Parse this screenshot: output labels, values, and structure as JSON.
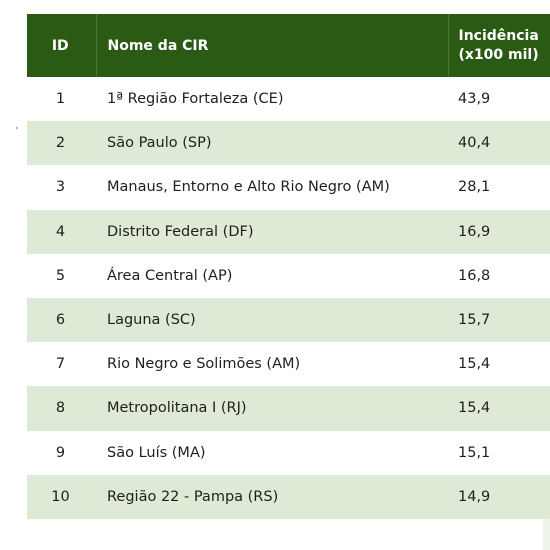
{
  "table": {
    "headers": {
      "id": "ID",
      "name": "Nome da CIR",
      "incidence_line1": "Incidência",
      "incidence_line2": "(x100 mil)"
    },
    "rows": [
      {
        "id": "1",
        "name": "1ª Região Fortaleza (CE)",
        "incidence": "43,9"
      },
      {
        "id": "2",
        "name": "São Paulo (SP)",
        "incidence": "40,4"
      },
      {
        "id": "3",
        "name": "Manaus, Entorno e Alto Rio Negro (AM)",
        "incidence": "28,1"
      },
      {
        "id": "4",
        "name": "Distrito Federal (DF)",
        "incidence": "16,9"
      },
      {
        "id": "5",
        "name": "Área Central (AP)",
        "incidence": "16,8"
      },
      {
        "id": "6",
        "name": "Laguna (SC)",
        "incidence": "15,7"
      },
      {
        "id": "7",
        "name": "Rio Negro e Solimões (AM)",
        "incidence": "15,4"
      },
      {
        "id": "8",
        "name": "Metropolitana I (RJ)",
        "incidence": "15,4"
      },
      {
        "id": "9",
        "name": "São Luís (MA)",
        "incidence": "15,1"
      },
      {
        "id": "10",
        "name": "Região 22 - Pampa (RS)",
        "incidence": "14,9"
      }
    ]
  },
  "colors": {
    "header_bg": "#2b5a15",
    "header_text": "#ffffff",
    "stripe_bg": "#dfead6",
    "row_text": "#1f1f1f"
  }
}
